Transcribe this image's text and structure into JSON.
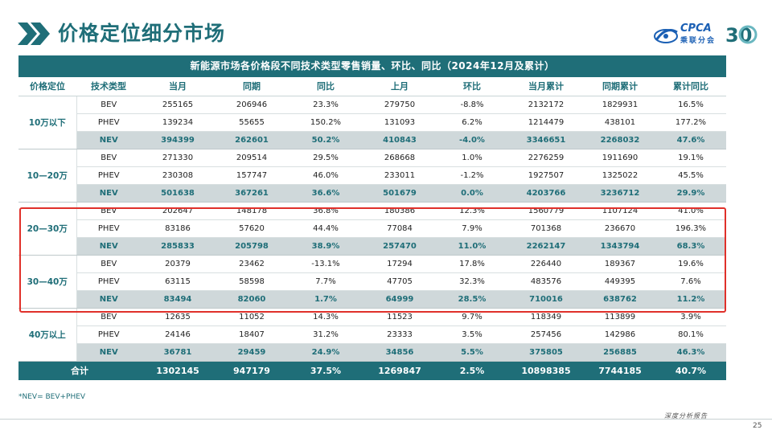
{
  "page_title": "价格定位细分市场",
  "logos": {
    "cpca_text": "CPCA",
    "cpca_sub": "乘联分会",
    "anniversary": "30"
  },
  "table": {
    "caption": "新能源市场各价格段不同技术类型零售销量、环比、同比（2024年12月及累计）",
    "headers": [
      "价格定位",
      "技术类型",
      "当月",
      "同期",
      "同比",
      "上月",
      "环比",
      "当月累计",
      "同期累计",
      "累计同比"
    ],
    "groups": [
      {
        "label": "10万以下",
        "rows": [
          {
            "type": "BEV",
            "v": [
              "255165",
              "206946",
              "23.3%",
              "279750",
              "-8.8%",
              "2132172",
              "1829931",
              "16.5%"
            ]
          },
          {
            "type": "PHEV",
            "v": [
              "139234",
              "55655",
              "150.2%",
              "131093",
              "6.2%",
              "1214479",
              "438101",
              "177.2%"
            ]
          },
          {
            "type": "NEV",
            "v": [
              "394399",
              "262601",
              "50.2%",
              "410843",
              "-4.0%",
              "3346651",
              "2268032",
              "47.6%"
            ]
          }
        ]
      },
      {
        "label": "10—20万",
        "rows": [
          {
            "type": "BEV",
            "v": [
              "271330",
              "209514",
              "29.5%",
              "268668",
              "1.0%",
              "2276259",
              "1911690",
              "19.1%"
            ]
          },
          {
            "type": "PHEV",
            "v": [
              "230308",
              "157747",
              "46.0%",
              "233011",
              "-1.2%",
              "1927507",
              "1325022",
              "45.5%"
            ]
          },
          {
            "type": "NEV",
            "v": [
              "501638",
              "367261",
              "36.6%",
              "501679",
              "0.0%",
              "4203766",
              "3236712",
              "29.9%"
            ]
          }
        ]
      },
      {
        "label": "20—30万",
        "rows": [
          {
            "type": "BEV",
            "v": [
              "202647",
              "148178",
              "36.8%",
              "180386",
              "12.3%",
              "1560779",
              "1107124",
              "41.0%"
            ]
          },
          {
            "type": "PHEV",
            "v": [
              "83186",
              "57620",
              "44.4%",
              "77084",
              "7.9%",
              "701368",
              "236670",
              "196.3%"
            ]
          },
          {
            "type": "NEV",
            "v": [
              "285833",
              "205798",
              "38.9%",
              "257470",
              "11.0%",
              "2262147",
              "1343794",
              "68.3%"
            ]
          }
        ]
      },
      {
        "label": "30—40万",
        "rows": [
          {
            "type": "BEV",
            "v": [
              "20379",
              "23462",
              "-13.1%",
              "17294",
              "17.8%",
              "226440",
              "189367",
              "19.6%"
            ]
          },
          {
            "type": "PHEV",
            "v": [
              "63115",
              "58598",
              "7.7%",
              "47705",
              "32.3%",
              "483576",
              "449395",
              "7.6%"
            ]
          },
          {
            "type": "NEV",
            "v": [
              "83494",
              "82060",
              "1.7%",
              "64999",
              "28.5%",
              "710016",
              "638762",
              "11.2%"
            ]
          }
        ]
      },
      {
        "label": "40万以上",
        "rows": [
          {
            "type": "BEV",
            "v": [
              "12635",
              "11052",
              "14.3%",
              "11523",
              "9.7%",
              "118349",
              "113899",
              "3.9%"
            ]
          },
          {
            "type": "PHEV",
            "v": [
              "24146",
              "18407",
              "31.2%",
              "23333",
              "3.5%",
              "257456",
              "142986",
              "80.1%"
            ]
          },
          {
            "type": "NEV",
            "v": [
              "36781",
              "29459",
              "24.9%",
              "34856",
              "5.5%",
              "375805",
              "256885",
              "46.3%"
            ]
          }
        ]
      }
    ],
    "total": {
      "label": "合计",
      "v": [
        "1302145",
        "947179",
        "37.5%",
        "1269847",
        "2.5%",
        "10898385",
        "7744185",
        "40.7%"
      ]
    }
  },
  "footnote": "*NEV= BEV+PHEV",
  "footer_text": "深度分析报告",
  "page_number": "25",
  "colors": {
    "brand": "#1f6e78",
    "nev_row": "#cfd8da",
    "highlight": "#e0302a"
  }
}
